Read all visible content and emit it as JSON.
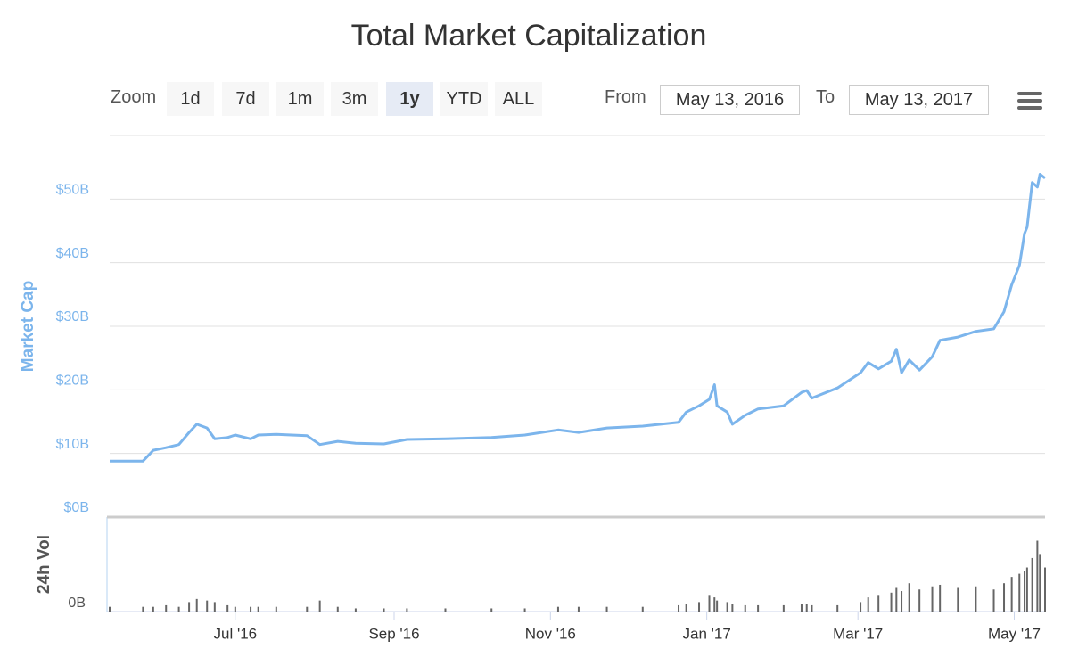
{
  "chart_data": {
    "type": "line",
    "title": "Total Market Capitalization",
    "zoom": {
      "label": "Zoom",
      "buttons": [
        "1d",
        "7d",
        "1m",
        "3m",
        "1y",
        "YTD",
        "ALL"
      ],
      "selected": 4
    },
    "from_label": "From",
    "from": "May 13, 2016",
    "to_label": "To",
    "to": "May 13, 2017",
    "ylabel": "Market Cap",
    "xlim": [
      "2016-05-13",
      "2017-05-13"
    ],
    "xticks": [
      {
        "value": "2016-07-01",
        "label": "Jul '16"
      },
      {
        "value": "2016-09-01",
        "label": "Sep '16"
      },
      {
        "value": "2016-11-01",
        "label": "Nov '16"
      },
      {
        "value": "2017-01-01",
        "label": "Jan '17"
      },
      {
        "value": "2017-03-01",
        "label": "Mar '17"
      },
      {
        "value": "2017-05-01",
        "label": "May '17"
      }
    ],
    "ylim": [
      0,
      60
    ],
    "yticks": [
      {
        "value": 0,
        "label": "$0B"
      },
      {
        "value": 10,
        "label": "$10B"
      },
      {
        "value": 20,
        "label": "$20B"
      },
      {
        "value": 30,
        "label": "$30B"
      },
      {
        "value": 40,
        "label": "$40B"
      },
      {
        "value": 50,
        "label": "$50B"
      }
    ],
    "grid": true,
    "x": [
      "2016-05-13",
      "2016-05-26",
      "2016-05-30",
      "2016-06-04",
      "2016-06-09",
      "2016-06-13",
      "2016-06-16",
      "2016-06-20",
      "2016-06-23",
      "2016-06-28",
      "2016-07-01",
      "2016-07-07",
      "2016-07-10",
      "2016-07-17",
      "2016-07-29",
      "2016-08-03",
      "2016-08-10",
      "2016-08-17",
      "2016-08-28",
      "2016-09-06",
      "2016-09-21",
      "2016-10-09",
      "2016-10-22",
      "2016-11-04",
      "2016-11-12",
      "2016-11-23",
      "2016-12-07",
      "2016-12-21",
      "2016-12-24",
      "2016-12-29",
      "2017-01-02",
      "2017-01-04",
      "2017-01-05",
      "2017-01-09",
      "2017-01-11",
      "2017-01-16",
      "2017-01-21",
      "2017-01-31",
      "2017-02-07",
      "2017-02-09",
      "2017-02-11",
      "2017-02-21",
      "2017-03-02",
      "2017-03-05",
      "2017-03-09",
      "2017-03-14",
      "2017-03-16",
      "2017-03-18",
      "2017-03-21",
      "2017-03-25",
      "2017-03-30",
      "2017-04-02",
      "2017-04-09",
      "2017-04-16",
      "2017-04-23",
      "2017-04-27",
      "2017-04-30",
      "2017-05-03",
      "2017-05-05",
      "2017-05-06",
      "2017-05-08",
      "2017-05-10",
      "2017-05-11",
      "2017-05-13"
    ],
    "series": [
      {
        "color": "#7cb5ec",
        "values": [
          8.8,
          8.8,
          10.5,
          10.9,
          11.4,
          13.3,
          14.6,
          14.0,
          12.3,
          12.5,
          12.9,
          12.3,
          12.9,
          13.0,
          12.8,
          11.4,
          11.9,
          11.6,
          11.5,
          12.2,
          12.3,
          12.5,
          12.9,
          13.7,
          13.3,
          14.0,
          14.3,
          14.9,
          16.5,
          17.5,
          18.5,
          20.8,
          17.5,
          16.5,
          14.6,
          16.0,
          17.0,
          17.5,
          19.6,
          19.9,
          18.7,
          20.3,
          22.7,
          24.3,
          23.3,
          24.5,
          26.4,
          22.7,
          24.7,
          23.1,
          25.2,
          27.8,
          28.3,
          29.2,
          29.6,
          32.3,
          36.5,
          39.6,
          44.6,
          45.6,
          52.6,
          51.9,
          53.9,
          53.3
        ]
      }
    ],
    "volume": {
      "ylabel": "24h Vol",
      "color": "#666666",
      "ylim": [
        0,
        6
      ],
      "yticks": [
        {
          "value": 0,
          "label": "0B"
        }
      ],
      "values": [
        0.3,
        0.3,
        0.3,
        0.4,
        0.3,
        0.6,
        0.8,
        0.7,
        0.6,
        0.4,
        0.3,
        0.3,
        0.3,
        0.3,
        0.3,
        0.7,
        0.3,
        0.2,
        0.2,
        0.2,
        0.2,
        0.2,
        0.2,
        0.3,
        0.3,
        0.3,
        0.3,
        0.4,
        0.5,
        0.6,
        1.0,
        0.9,
        0.7,
        0.6,
        0.5,
        0.4,
        0.4,
        0.4,
        0.5,
        0.5,
        0.4,
        0.4,
        0.6,
        0.9,
        1.0,
        1.2,
        1.5,
        1.3,
        1.8,
        1.4,
        1.6,
        1.7,
        1.5,
        1.6,
        1.4,
        1.8,
        2.2,
        2.4,
        2.6,
        2.8,
        3.4,
        4.5,
        3.6,
        2.8
      ]
    }
  }
}
